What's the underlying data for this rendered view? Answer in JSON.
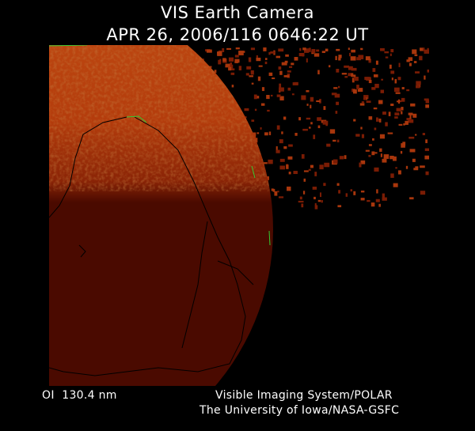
{
  "header": {
    "title": "VIS Earth Camera",
    "timestamp": "APR 26, 2006/116 0646:22 UT"
  },
  "footer": {
    "wavelength": "OI  130.4 nm",
    "instrument": "Visible Imaging System/POLAR",
    "institution": "The University of Iowa/NASA-GSFC"
  },
  "colors": {
    "background": "#000000",
    "dayside_glow": "#b8400c",
    "nightside": "#4a0a00",
    "coastline": "#000000",
    "grid_line": "#33cc33"
  }
}
